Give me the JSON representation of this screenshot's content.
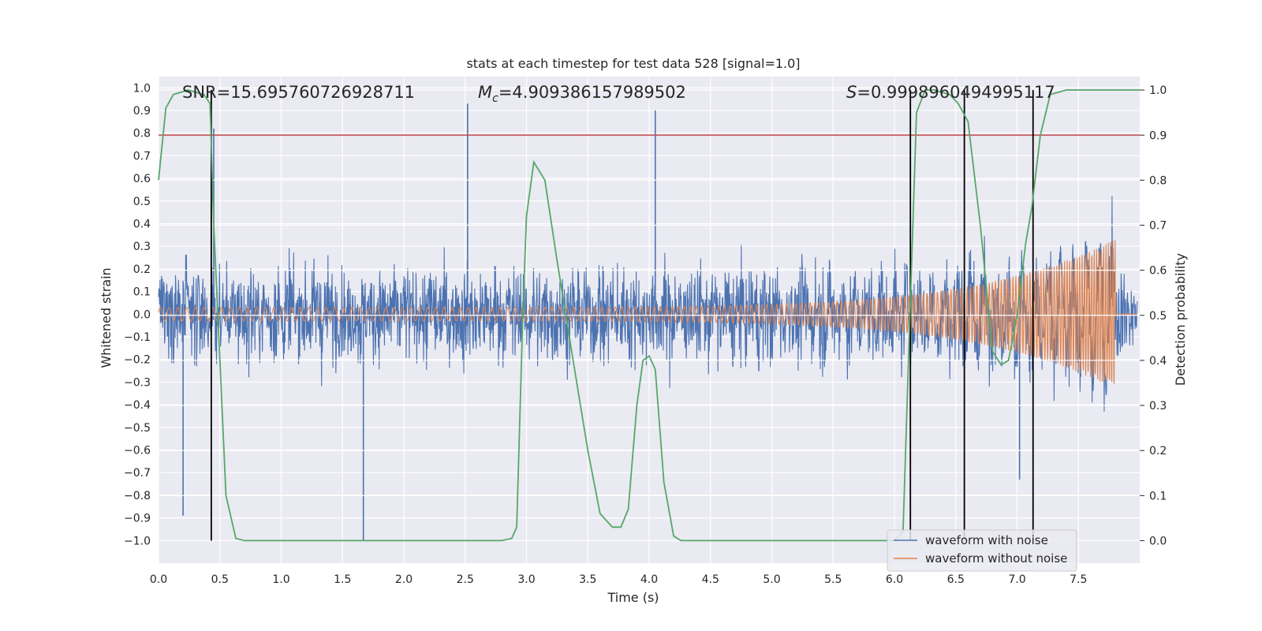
{
  "chart_data": {
    "type": "line",
    "title": "stats at each timestep for test data 528 [signal=1.0]",
    "xlabel": "Time (s)",
    "ylabel": "Whitened strain",
    "ylabel_right": "Detection probability",
    "xlim": [
      0.0,
      8.0
    ],
    "ylim": [
      -1.1,
      1.05
    ],
    "ylim_right": [
      -0.05,
      1.03
    ],
    "grid": true,
    "x_ticks": [
      0.0,
      0.5,
      1.0,
      1.5,
      2.0,
      2.5,
      3.0,
      3.5,
      4.0,
      4.5,
      5.0,
      5.5,
      6.0,
      6.5,
      7.0,
      7.5
    ],
    "x_tick_labels": [
      "0.0",
      "0.5",
      "1.0",
      "1.5",
      "2.0",
      "2.5",
      "3.0",
      "3.5",
      "4.0",
      "4.5",
      "5.0",
      "5.5",
      "6.0",
      "6.5",
      "7.0",
      "7.5"
    ],
    "y_ticks": [
      1.0,
      0.9,
      0.8,
      0.7,
      0.6,
      0.5,
      0.4,
      0.3,
      0.2,
      0.1,
      0.0,
      -0.1,
      -0.2,
      -0.3,
      -0.4,
      -0.5,
      -0.6,
      -0.7,
      -0.8,
      -0.9,
      -1.0
    ],
    "y_tick_labels": [
      "1.0",
      "0.9",
      "0.8",
      "0.7",
      "0.6",
      "0.5",
      "0.4",
      "0.3",
      "0.2",
      "0.1",
      "0.0",
      "−0.1",
      "−0.2",
      "−0.3",
      "−0.4",
      "−0.5",
      "−0.6",
      "−0.7",
      "−0.8",
      "−0.9",
      "−1.0"
    ],
    "y_ticks_right": [
      1.0,
      0.9,
      0.8,
      0.7,
      0.6,
      0.5,
      0.4,
      0.3,
      0.2,
      0.1,
      0.0
    ],
    "y_tick_labels_right": [
      "1.0",
      "0.9",
      "0.8",
      "0.7",
      "0.6",
      "0.5",
      "0.4",
      "0.3",
      "0.2",
      "0.1",
      "0.0"
    ],
    "annotations": {
      "snr": "SNR=15.695760726928711",
      "mc_symbol": "M",
      "mc_sub": "c",
      "mc_value": "=4.909386157989502",
      "s_symbol": "S",
      "s_value": "=0.9998960494995117"
    },
    "series": [
      {
        "name": "waveform with noise",
        "color": "#4c72b0",
        "description": "whitened noisy strain, amplitude mostly within ±0.5 with spikes up to 0.93 and down to -1.0",
        "envelope_upper": 0.45,
        "envelope_lower": -0.45,
        "peaks": [
          [
            0.45,
            0.82
          ],
          [
            2.52,
            0.93
          ],
          [
            4.05,
            0.9
          ],
          [
            1.67,
            -1.0
          ],
          [
            0.2,
            -0.89
          ],
          [
            7.02,
            -0.73
          ]
        ]
      },
      {
        "name": "waveform without noise",
        "color": "#dd8452",
        "description": "inspiral chirp, amplitude growing from ~0.03 to ~0.33, merging near t=7.8 s",
        "merger_time": 7.8,
        "start_amplitude": 0.03,
        "peak_amplitude": 0.33
      },
      {
        "name": "detection probability",
        "color": "#55a868",
        "axis": "right",
        "x": [
          0.0,
          0.06,
          0.12,
          0.24,
          0.37,
          0.42,
          0.45,
          0.5,
          0.55,
          0.63,
          0.7,
          1.0,
          1.5,
          2.0,
          2.5,
          2.8,
          2.88,
          2.92,
          2.97,
          3.0,
          3.06,
          3.15,
          3.25,
          3.38,
          3.5,
          3.6,
          3.7,
          3.77,
          3.83,
          3.9,
          3.95,
          4.0,
          4.05,
          4.12,
          4.2,
          4.26,
          4.5,
          5.0,
          5.5,
          6.0,
          6.07,
          6.12,
          6.18,
          6.25,
          6.33,
          6.45,
          6.52,
          6.6,
          6.7,
          6.8,
          6.87,
          6.93,
          7.0,
          7.07,
          7.12,
          7.19,
          7.27,
          7.4,
          8.0
        ],
        "y": [
          0.8,
          0.96,
          0.99,
          1.0,
          0.99,
          0.97,
          0.7,
          0.4,
          0.1,
          0.005,
          0.0,
          0.0,
          0.0,
          0.0,
          0.0,
          0.0,
          0.005,
          0.03,
          0.5,
          0.72,
          0.84,
          0.8,
          0.62,
          0.4,
          0.2,
          0.06,
          0.03,
          0.03,
          0.07,
          0.3,
          0.4,
          0.41,
          0.38,
          0.13,
          0.01,
          0.0,
          0.0,
          0.0,
          0.0,
          0.0,
          0.02,
          0.45,
          0.95,
          1.0,
          1.0,
          0.99,
          0.97,
          0.93,
          0.7,
          0.42,
          0.39,
          0.4,
          0.5,
          0.66,
          0.74,
          0.9,
          0.99,
          1.0,
          1.0
        ]
      }
    ],
    "threshold": {
      "value": 0.9,
      "axis": "right",
      "color": "#c44e52"
    },
    "vertical_lines": [
      0.43,
      6.13,
      6.57,
      7.13
    ],
    "legend": {
      "position": "lower-right",
      "entries": [
        {
          "label": "waveform with noise",
          "color": "#4c72b0"
        },
        {
          "label": "waveform without noise",
          "color": "#dd8452"
        }
      ]
    }
  }
}
